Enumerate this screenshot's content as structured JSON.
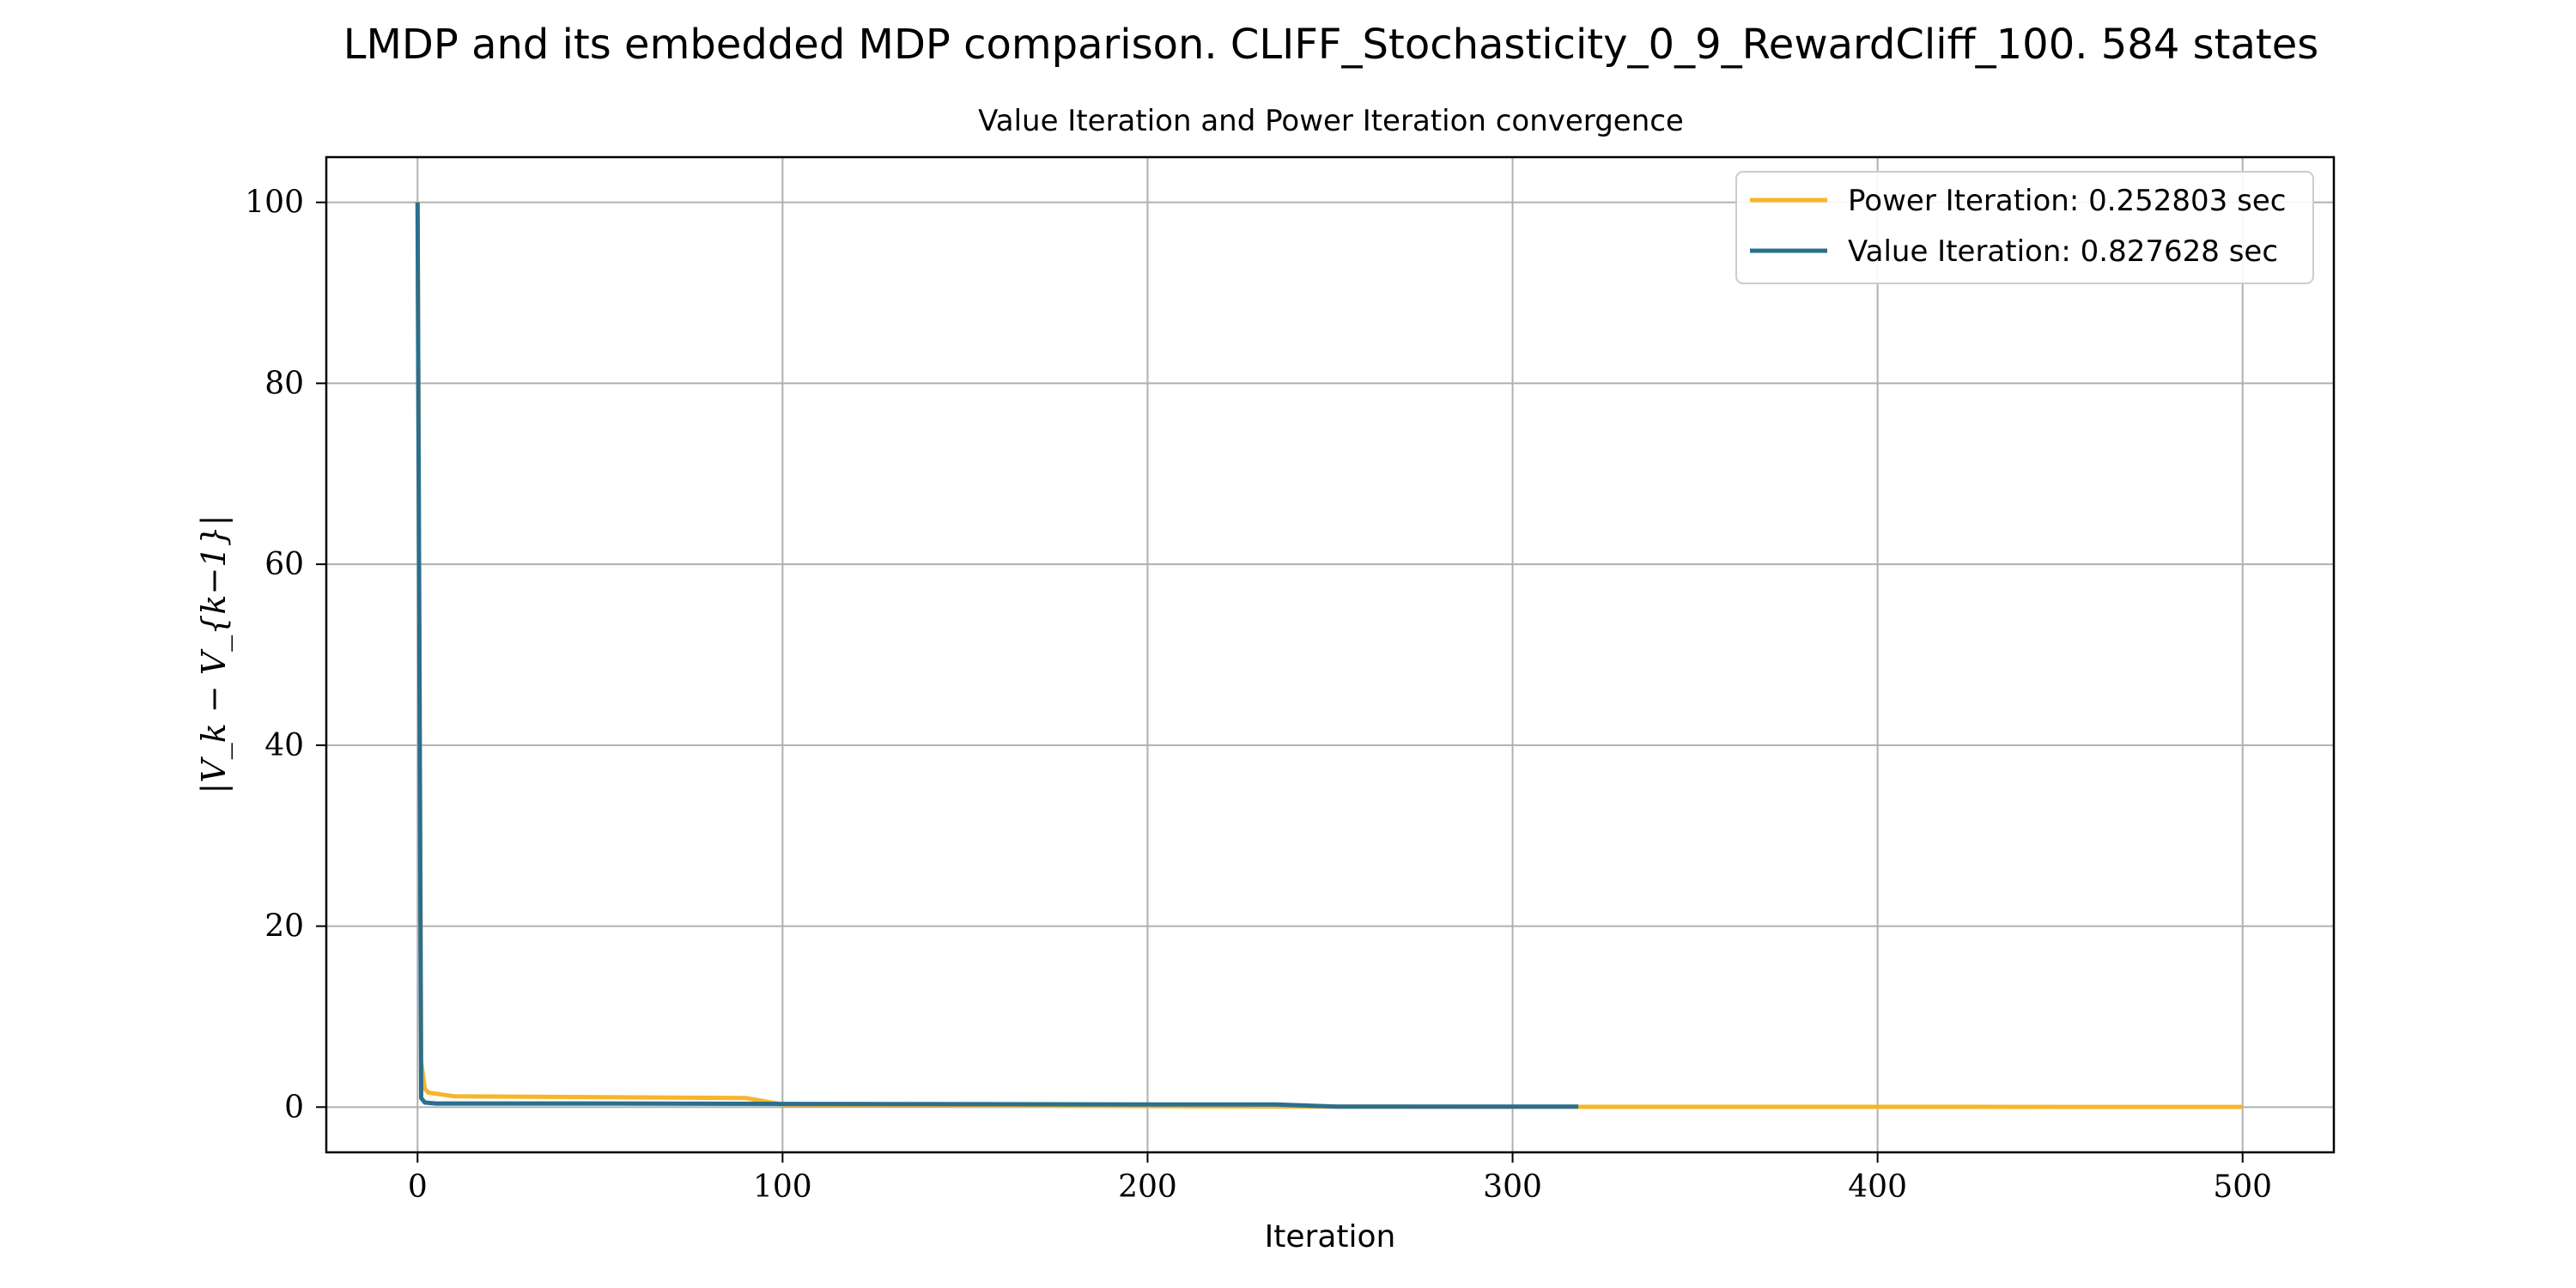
{
  "figure": {
    "suptitle": "LMDP and its embedded MDP comparison. CLIFF_Stochasticity_0_9_RewardCliff_100. 584 states"
  },
  "chart_data": {
    "type": "line",
    "title": "Value Iteration and Power Iteration convergence",
    "xlabel": "Iteration",
    "ylabel": "|V_k − V_{k−1}|",
    "xlim": [
      -25,
      525
    ],
    "ylim": [
      -5,
      105
    ],
    "xticks": [
      0,
      100,
      200,
      300,
      400,
      500
    ],
    "yticks": [
      0,
      20,
      40,
      60,
      80,
      100
    ],
    "grid": true,
    "legend_position": "top-right",
    "series": [
      {
        "name": "Power Iteration: 0.252803 sec",
        "color": "#f7b52a",
        "x": [
          0,
          1,
          2,
          3,
          10,
          50,
          90,
          100,
          200,
          250,
          320,
          500
        ],
        "y": [
          100,
          5,
          2,
          1.6,
          1.2,
          1.1,
          1.0,
          0.3,
          0.1,
          0.05,
          0.03,
          0.02
        ]
      },
      {
        "name": "Value Iteration: 0.827628 sec",
        "color": "#2b6f8e",
        "x": [
          0,
          1,
          2,
          5,
          50,
          100,
          200,
          235,
          252,
          318
        ],
        "y": [
          100,
          1.0,
          0.5,
          0.4,
          0.4,
          0.35,
          0.3,
          0.3,
          0.05,
          0.05
        ]
      }
    ]
  }
}
